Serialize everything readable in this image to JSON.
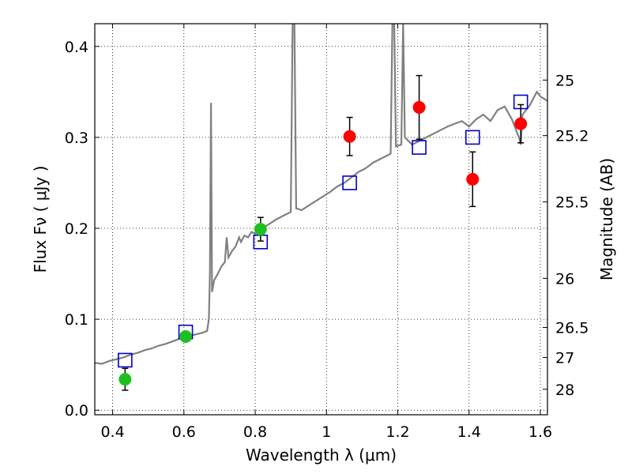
{
  "chart_data": {
    "type": "scatter",
    "xlabel": "Wavelength  λ (μm)",
    "ylabel": "Flux  Fν ( μJy )",
    "y2label": "Magnitude (AB)",
    "xlim": [
      0.35,
      1.62
    ],
    "ylim": [
      -0.005,
      0.425
    ],
    "grid": true,
    "x_ticks": [
      {
        "value": 0.4,
        "label": "0.4"
      },
      {
        "value": 0.6,
        "label": "0.6"
      },
      {
        "value": 0.8,
        "label": "0.8"
      },
      {
        "value": 1.0,
        "label": "1"
      },
      {
        "value": 1.2,
        "label": "1.2"
      },
      {
        "value": 1.4,
        "label": "1.4"
      },
      {
        "value": 1.6,
        "label": "1.6"
      }
    ],
    "y_ticks": [
      {
        "value": 0.0,
        "label": "0.0"
      },
      {
        "value": 0.1,
        "label": "0.1"
      },
      {
        "value": 0.2,
        "label": "0.2"
      },
      {
        "value": 0.3,
        "label": "0.3"
      },
      {
        "value": 0.4,
        "label": "0.4"
      }
    ],
    "y2_ticks": [
      {
        "flux": 0.363,
        "label": "25"
      },
      {
        "flux": 0.302,
        "label": "25.2"
      },
      {
        "flux": 0.229,
        "label": "25.5"
      },
      {
        "flux": 0.145,
        "label": "26"
      },
      {
        "flux": 0.091,
        "label": "26.5"
      },
      {
        "flux": 0.058,
        "label": "27"
      },
      {
        "flux": 0.023,
        "label": "28"
      }
    ],
    "series": [
      {
        "kind": "line",
        "color": "#808080",
        "points": [
          [
            0.35,
            0.052
          ],
          [
            0.37,
            0.051
          ],
          [
            0.39,
            0.054
          ],
          [
            0.41,
            0.056
          ],
          [
            0.43,
            0.058
          ],
          [
            0.45,
            0.061
          ],
          [
            0.47,
            0.063
          ],
          [
            0.49,
            0.066
          ],
          [
            0.51,
            0.068
          ],
          [
            0.53,
            0.071
          ],
          [
            0.55,
            0.073
          ],
          [
            0.57,
            0.076
          ],
          [
            0.59,
            0.079
          ],
          [
            0.61,
            0.081
          ],
          [
            0.63,
            0.083
          ],
          [
            0.65,
            0.085
          ],
          [
            0.665,
            0.087
          ],
          [
            0.67,
            0.1
          ],
          [
            0.673,
            0.15
          ],
          [
            0.676,
            0.338
          ],
          [
            0.679,
            0.13
          ],
          [
            0.685,
            0.143
          ],
          [
            0.695,
            0.15
          ],
          [
            0.705,
            0.158
          ],
          [
            0.715,
            0.163
          ],
          [
            0.72,
            0.19
          ],
          [
            0.725,
            0.168
          ],
          [
            0.735,
            0.175
          ],
          [
            0.745,
            0.18
          ],
          [
            0.755,
            0.19
          ],
          [
            0.76,
            0.185
          ],
          [
            0.77,
            0.192
          ],
          [
            0.78,
            0.19
          ],
          [
            0.79,
            0.196
          ],
          [
            0.8,
            0.194
          ],
          [
            0.82,
            0.2
          ],
          [
            0.84,
            0.205
          ],
          [
            0.86,
            0.21
          ],
          [
            0.88,
            0.214
          ],
          [
            0.9,
            0.218
          ],
          [
            0.905,
            0.425
          ],
          [
            0.91,
            0.425
          ],
          [
            0.915,
            0.222
          ],
          [
            0.93,
            0.22
          ],
          [
            0.95,
            0.225
          ],
          [
            0.97,
            0.23
          ],
          [
            0.99,
            0.235
          ],
          [
            1.01,
            0.24
          ],
          [
            1.03,
            0.246
          ],
          [
            1.05,
            0.25
          ],
          [
            1.07,
            0.256
          ],
          [
            1.09,
            0.262
          ],
          [
            1.11,
            0.266
          ],
          [
            1.13,
            0.272
          ],
          [
            1.15,
            0.276
          ],
          [
            1.17,
            0.28
          ],
          [
            1.18,
            0.282
          ],
          [
            1.185,
            0.425
          ],
          [
            1.19,
            0.425
          ],
          [
            1.195,
            0.29
          ],
          [
            1.21,
            0.292
          ],
          [
            1.215,
            0.425
          ],
          [
            1.22,
            0.3
          ],
          [
            1.24,
            0.292
          ],
          [
            1.26,
            0.296
          ],
          [
            1.28,
            0.3
          ],
          [
            1.3,
            0.304
          ],
          [
            1.32,
            0.308
          ],
          [
            1.34,
            0.312
          ],
          [
            1.36,
            0.315
          ],
          [
            1.38,
            0.318
          ],
          [
            1.4,
            0.312
          ],
          [
            1.42,
            0.32
          ],
          [
            1.44,
            0.325
          ],
          [
            1.46,
            0.318
          ],
          [
            1.48,
            0.33
          ],
          [
            1.5,
            0.334
          ],
          [
            1.52,
            0.32
          ],
          [
            1.54,
            0.3
          ],
          [
            1.545,
            0.292
          ],
          [
            1.55,
            0.325
          ],
          [
            1.57,
            0.335
          ],
          [
            1.59,
            0.35
          ],
          [
            1.6,
            0.345
          ],
          [
            1.62,
            0.34
          ]
        ]
      },
      {
        "kind": "observed_optical",
        "color": "#1fbf1f",
        "points": [
          {
            "x": 0.435,
            "y": 0.034,
            "err": 0.012
          },
          {
            "x": 0.605,
            "y": 0.081,
            "err": 0.005
          },
          {
            "x": 0.815,
            "y": 0.199,
            "err": 0.013
          }
        ]
      },
      {
        "kind": "observed_nir",
        "color": "#ff0000",
        "points": [
          {
            "x": 1.065,
            "y": 0.301,
            "err": 0.021
          },
          {
            "x": 1.26,
            "y": 0.333,
            "err": 0.035
          },
          {
            "x": 1.41,
            "y": 0.254,
            "err": 0.03
          },
          {
            "x": 1.545,
            "y": 0.315,
            "err": 0.021
          }
        ]
      },
      {
        "kind": "model_photometry",
        "color": "#0000cc",
        "points": [
          {
            "x": 0.435,
            "y": 0.055
          },
          {
            "x": 0.605,
            "y": 0.086
          },
          {
            "x": 0.815,
            "y": 0.185
          },
          {
            "x": 1.065,
            "y": 0.25
          },
          {
            "x": 1.26,
            "y": 0.289
          },
          {
            "x": 1.41,
            "y": 0.3
          },
          {
            "x": 1.545,
            "y": 0.339
          }
        ]
      }
    ]
  }
}
